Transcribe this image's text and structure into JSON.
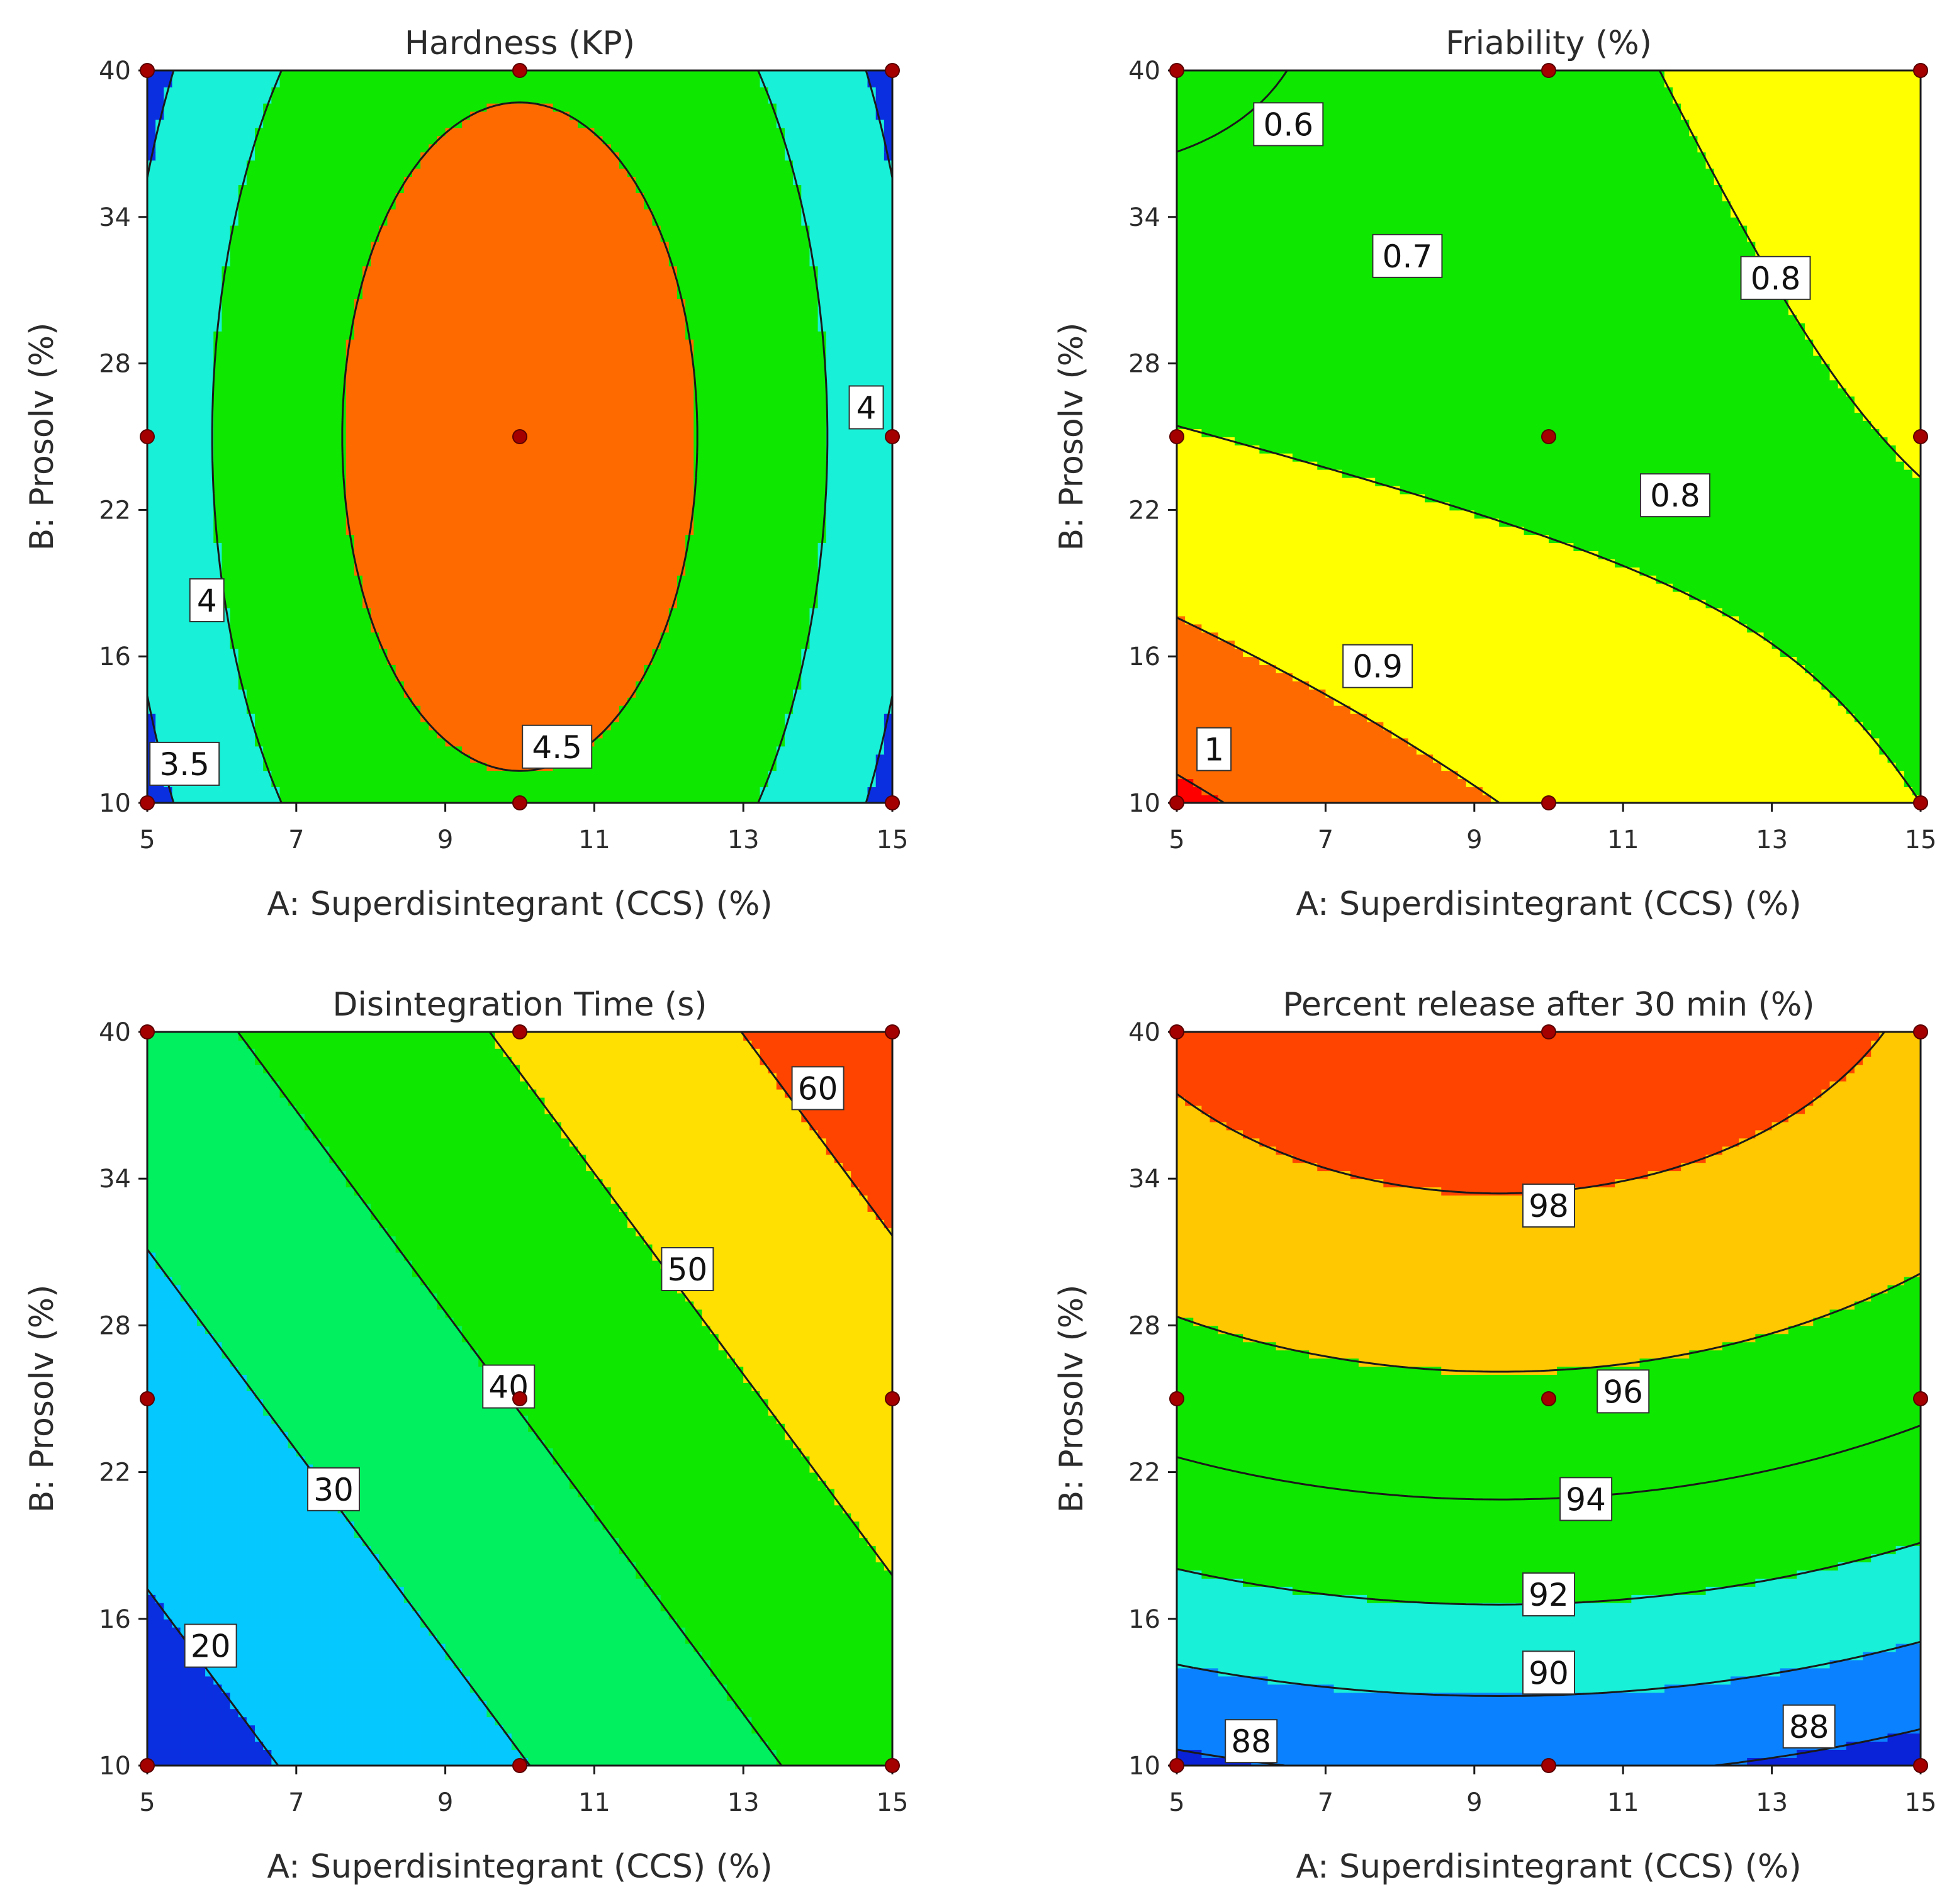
{
  "chart_data": [
    {
      "type": "contour",
      "title": "Hardness (KP)",
      "xlabel": "A: Superdisintegrant (CCS) (%)",
      "ylabel": "B: Prosolv  (%)",
      "xlim": [
        5,
        15
      ],
      "ylim": [
        10,
        40
      ],
      "xticks": [
        "5",
        "7",
        "9",
        "11",
        "13",
        "15"
      ],
      "yticks": [
        "10",
        "16",
        "22",
        "28",
        "34",
        "40"
      ],
      "model": {
        "c": 4.75,
        "a1": 0,
        "b1": 0,
        "ab": 0,
        "a2": -1.1,
        "b2": -0.3
      },
      "levels": [
        3.5,
        4,
        4.5
      ],
      "colors": [
        "#0a2fe0",
        "#18f0d8",
        "#0ee800",
        "#ff6a00"
      ],
      "contour_labels": [
        {
          "text": "4",
          "a": 14.65,
          "b": 26.2
        },
        {
          "text": "4",
          "a": 5.8,
          "b": 18.3
        },
        {
          "text": "4.5",
          "a": 10.5,
          "b": 12.3
        },
        {
          "text": "3.5",
          "a": 5.5,
          "b": 11.6
        }
      ],
      "design_points": [
        [
          5,
          10
        ],
        [
          10,
          10
        ],
        [
          15,
          10
        ],
        [
          5,
          25
        ],
        [
          10,
          25
        ],
        [
          15,
          25
        ],
        [
          5,
          40
        ],
        [
          10,
          40
        ],
        [
          15,
          40
        ]
      ]
    },
    {
      "type": "contour",
      "title": "Friability (%)",
      "xlabel": "A: Superdisintegrant (CCS) (%)",
      "ylabel": "B: Prosolv  (%)",
      "xlim": [
        5,
        15
      ],
      "ylim": [
        10,
        40
      ],
      "xticks": [
        "5",
        "7",
        "9",
        "11",
        "13",
        "15"
      ],
      "yticks": [
        "10",
        "16",
        "22",
        "28",
        "34",
        "40"
      ],
      "model": {
        "c": 0.78,
        "a1": 0,
        "b1": -0.06,
        "ab": 0.11,
        "a2": 0.025,
        "b2": 0.045
      },
      "levels": [
        0.6,
        0.7,
        0.8,
        0.9,
        1
      ],
      "colors": [
        "#18f0d8",
        "#0ee800",
        "#0ee800",
        "#ffff00",
        "#ff6a00",
        "#ff0000"
      ],
      "contour_labels": [
        {
          "text": "0.6",
          "a": 6.5,
          "b": 37.8
        },
        {
          "text": "0.7",
          "a": 8.1,
          "b": 32.4
        },
        {
          "text": "0.8",
          "a": 13.05,
          "b": 31.5
        },
        {
          "text": "0.8",
          "a": 11.7,
          "b": 22.6
        },
        {
          "text": "0.9",
          "a": 7.7,
          "b": 15.6
        },
        {
          "text": "1",
          "a": 5.5,
          "b": 12.2
        }
      ],
      "design_points": [
        [
          5,
          10
        ],
        [
          10,
          10
        ],
        [
          15,
          10
        ],
        [
          5,
          25
        ],
        [
          10,
          25
        ],
        [
          15,
          25
        ],
        [
          5,
          40
        ],
        [
          10,
          40
        ],
        [
          15,
          40
        ]
      ]
    },
    {
      "type": "contour",
      "title": "Disintegration Time  (s)",
      "xlabel": "A: Superdisintegrant (CCS) (%)",
      "ylabel": "B: Prosolv  (%)",
      "xlim": [
        5,
        15
      ],
      "ylim": [
        10,
        40
      ],
      "xticks": [
        "5",
        "7",
        "9",
        "11",
        "13",
        "15"
      ],
      "yticks": [
        "10",
        "16",
        "22",
        "28",
        "34",
        "40"
      ],
      "model": {
        "c": 40.4,
        "a1": 14.8,
        "b1": 10.8,
        "ab": 0,
        "a2": 0,
        "b2": 0
      },
      "levels": [
        20,
        30,
        40,
        50,
        60
      ],
      "colors": [
        "#0a2fe0",
        "#05c8ff",
        "#00f060",
        "#0ee800",
        "#ffe000",
        "#ff4400"
      ],
      "contour_labels": [
        {
          "text": "20",
          "a": 5.85,
          "b": 14.9
        },
        {
          "text": "30",
          "a": 7.5,
          "b": 21.3
        },
        {
          "text": "40",
          "a": 9.85,
          "b": 25.5
        },
        {
          "text": "50",
          "a": 12.25,
          "b": 30.3
        },
        {
          "text": "60",
          "a": 14.0,
          "b": 37.7
        }
      ],
      "design_points": [
        [
          5,
          10
        ],
        [
          10,
          10
        ],
        [
          15,
          10
        ],
        [
          5,
          25
        ],
        [
          10,
          25
        ],
        [
          15,
          25
        ],
        [
          5,
          40
        ],
        [
          10,
          40
        ],
        [
          15,
          40
        ]
      ]
    },
    {
      "type": "contour",
      "title": "Percent release after 30 min (%)",
      "xlabel": "A: Superdisintegrant (CCS) (%)",
      "ylabel": "B: Prosolv  (%)",
      "xlim": [
        5,
        15
      ],
      "ylim": [
        10,
        40
      ],
      "xticks": [
        "5",
        "7",
        "9",
        "11",
        "13",
        "15"
      ],
      "yticks": [
        "10",
        "16",
        "22",
        "28",
        "34",
        "40"
      ],
      "model": {
        "c": 95.6,
        "a1": -0.25,
        "b1": 5.35,
        "ab": 0,
        "a2": -0.95,
        "b2": -1.95
      },
      "levels": [
        88,
        90,
        92,
        94,
        96,
        98
      ],
      "colors": [
        "#0a22d8",
        "#0a82ff",
        "#18f0d8",
        "#0ee800",
        "#0ee800",
        "#ffc800",
        "#ff4400"
      ],
      "contour_labels": [
        {
          "text": "98",
          "a": 10.0,
          "b": 32.9
        },
        {
          "text": "96",
          "a": 11.0,
          "b": 25.3
        },
        {
          "text": "94",
          "a": 10.5,
          "b": 20.9
        },
        {
          "text": "92",
          "a": 10.0,
          "b": 17.0
        },
        {
          "text": "90",
          "a": 10.0,
          "b": 13.8
        },
        {
          "text": "88",
          "a": 6.0,
          "b": 11.0
        },
        {
          "text": "88",
          "a": 13.5,
          "b": 11.6
        }
      ],
      "design_points": [
        [
          5,
          10
        ],
        [
          10,
          10
        ],
        [
          15,
          10
        ],
        [
          5,
          25
        ],
        [
          10,
          25
        ],
        [
          15,
          25
        ],
        [
          5,
          40
        ],
        [
          10,
          40
        ],
        [
          15,
          40
        ]
      ]
    }
  ]
}
